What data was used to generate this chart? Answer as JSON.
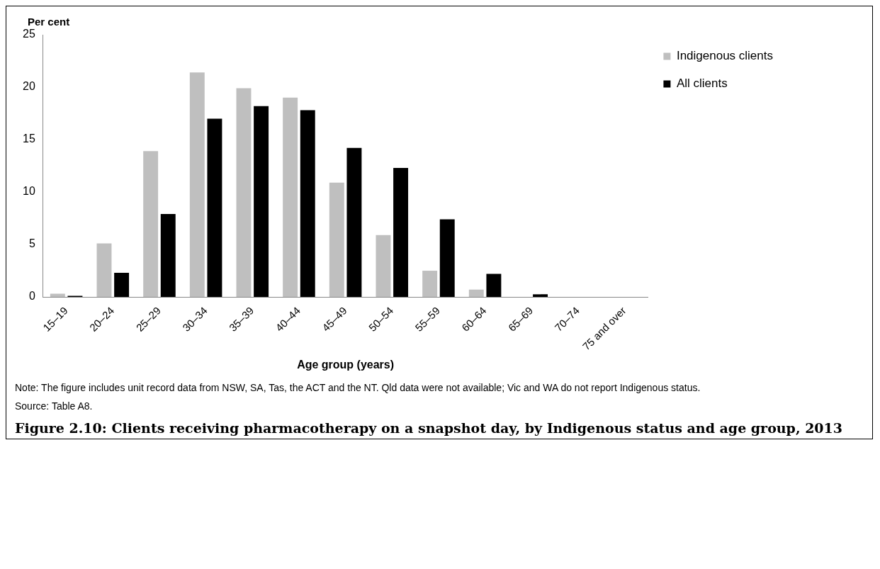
{
  "chart_data": {
    "type": "bar",
    "title": "Figure 2.10: Clients receiving pharmacotherapy on a snapshot day, by Indigenous status and age group, 2013",
    "xlabel": "Age group (years)",
    "ylabel": "Per cent",
    "categories": [
      "15–19",
      "20–24",
      "25–29",
      "30–34",
      "35–39",
      "40–44",
      "45–49",
      "50–54",
      "55–59",
      "60–64",
      "65–69",
      "70–74",
      "75 and over"
    ],
    "series": [
      {
        "name": "Indigenous clients",
        "color": "#bfbfbf",
        "values": [
          0.3,
          5.1,
          13.9,
          21.4,
          19.9,
          19.0,
          10.9,
          5.9,
          2.5,
          0.7,
          null,
          null,
          null
        ]
      },
      {
        "name": "All clients",
        "color": "#000000",
        "values": [
          0.1,
          2.3,
          7.9,
          17.0,
          18.2,
          17.8,
          14.2,
          12.3,
          7.4,
          2.2,
          0.25,
          0,
          0
        ]
      }
    ],
    "ylim": [
      0,
      25
    ],
    "yticks": [
      0,
      5,
      10,
      15,
      20,
      25
    ],
    "grid": false,
    "legend": "top right",
    "annotations": [
      "Note: The figure includes unit record data from NSW, SA, Tas, the ACT and the NT. Qld data were not available; Vic and WA do not report Indigenous status.",
      "Source: Table A8."
    ]
  }
}
